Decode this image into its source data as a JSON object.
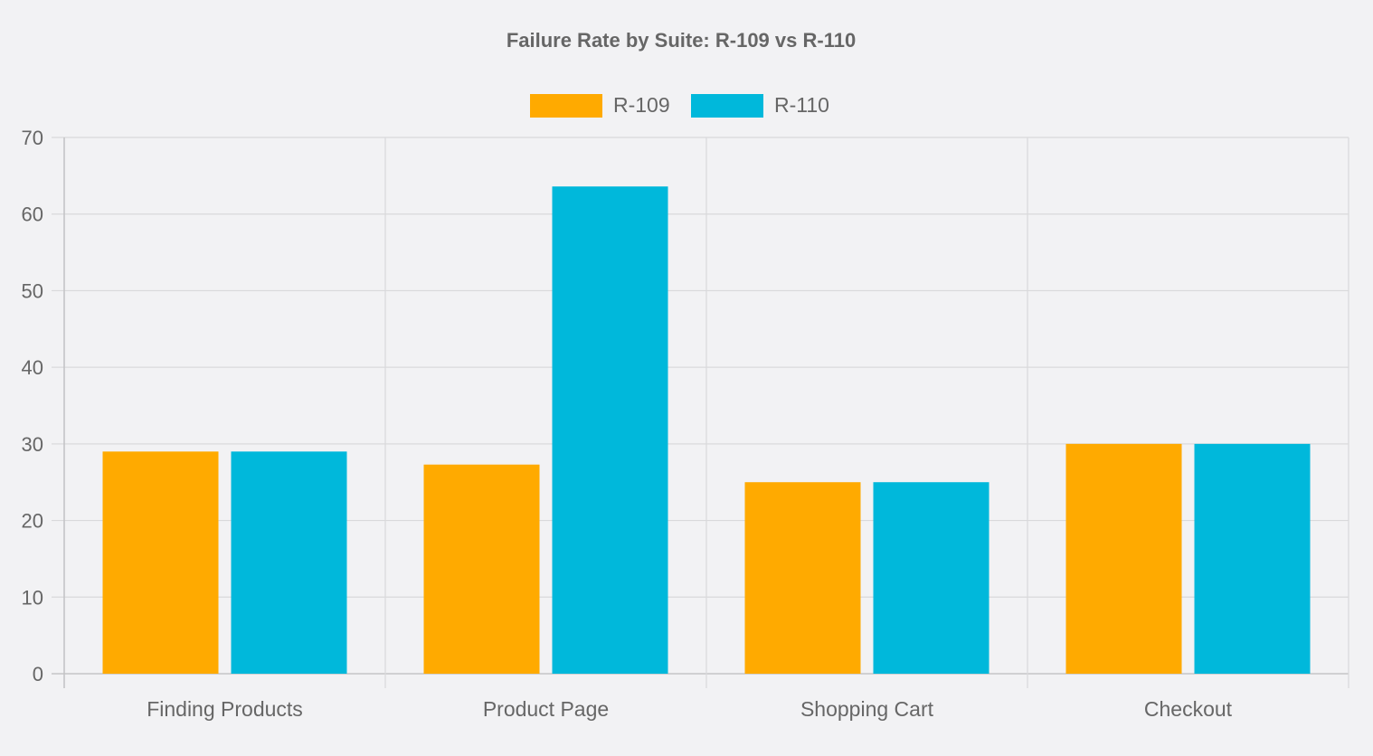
{
  "chart_data": {
    "type": "bar",
    "title": "Failure Rate by Suite: R-109 vs R-110",
    "categories": [
      "Finding Products",
      "Product Page",
      "Shopping Cart",
      "Checkout"
    ],
    "series": [
      {
        "name": "R-109",
        "values": [
          29,
          27.3,
          25,
          30
        ],
        "color": "#FFAA00"
      },
      {
        "name": "R-110",
        "values": [
          29,
          63.6,
          25,
          30
        ],
        "color": "#00B8DB"
      }
    ],
    "xlabel": "",
    "ylabel": "",
    "ylim": [
      0,
      70
    ],
    "yticks": [
      "0",
      "10",
      "20",
      "30",
      "40",
      "50",
      "60",
      "70"
    ],
    "grid": true,
    "legend": "top-center"
  }
}
